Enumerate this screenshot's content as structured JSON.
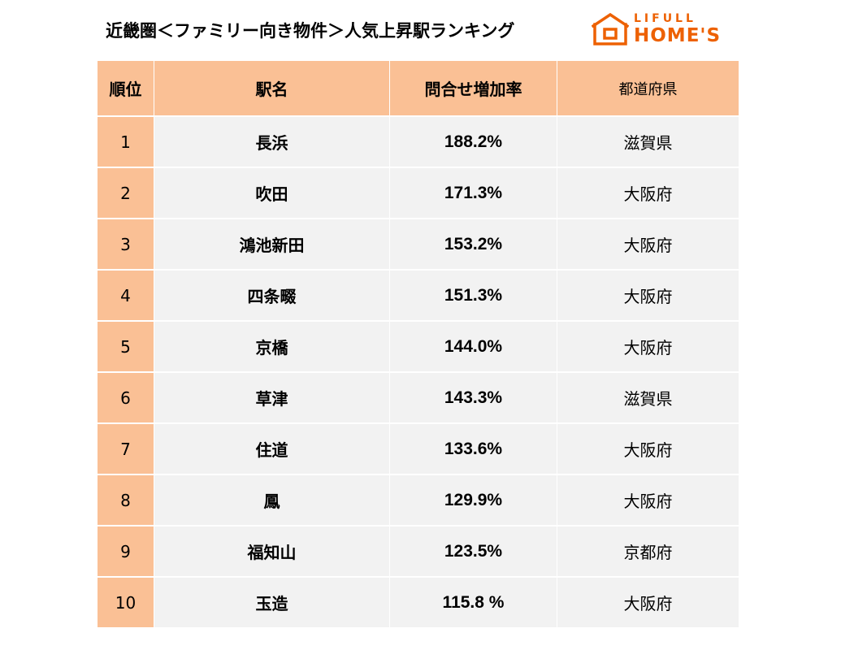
{
  "title": "近畿圏＜ファミリー向き物件＞人気上昇駅ランキング",
  "logo": {
    "line1": "LIFULL",
    "line2": "HOME'S",
    "color": "#ED6103"
  },
  "colors": {
    "header_bg": "#FAC095",
    "row_bg": "#F2F2F2"
  },
  "table": {
    "headers": {
      "rank": "順位",
      "station": "駅名",
      "rate": "問合せ増加率",
      "prefecture": "都道府県"
    },
    "rows": [
      {
        "rank": "1",
        "station": "長浜",
        "rate": "188.2%",
        "prefecture": "滋賀県"
      },
      {
        "rank": "2",
        "station": "吹田",
        "rate": "171.3%",
        "prefecture": "大阪府"
      },
      {
        "rank": "3",
        "station": "鴻池新田",
        "rate": "153.2%",
        "prefecture": "大阪府"
      },
      {
        "rank": "4",
        "station": "四条畷",
        "rate": "151.3%",
        "prefecture": "大阪府"
      },
      {
        "rank": "5",
        "station": "京橋",
        "rate": "144.0%",
        "prefecture": "大阪府"
      },
      {
        "rank": "6",
        "station": "草津",
        "rate": "143.3%",
        "prefecture": "滋賀県"
      },
      {
        "rank": "7",
        "station": "住道",
        "rate": "133.6%",
        "prefecture": "大阪府"
      },
      {
        "rank": "8",
        "station": "鳳",
        "rate": "129.9%",
        "prefecture": "大阪府"
      },
      {
        "rank": "9",
        "station": "福知山",
        "rate": "123.5%",
        "prefecture": "京都府"
      },
      {
        "rank": "10",
        "station": "玉造",
        "rate": "115.8 %",
        "prefecture": "大阪府"
      }
    ]
  }
}
